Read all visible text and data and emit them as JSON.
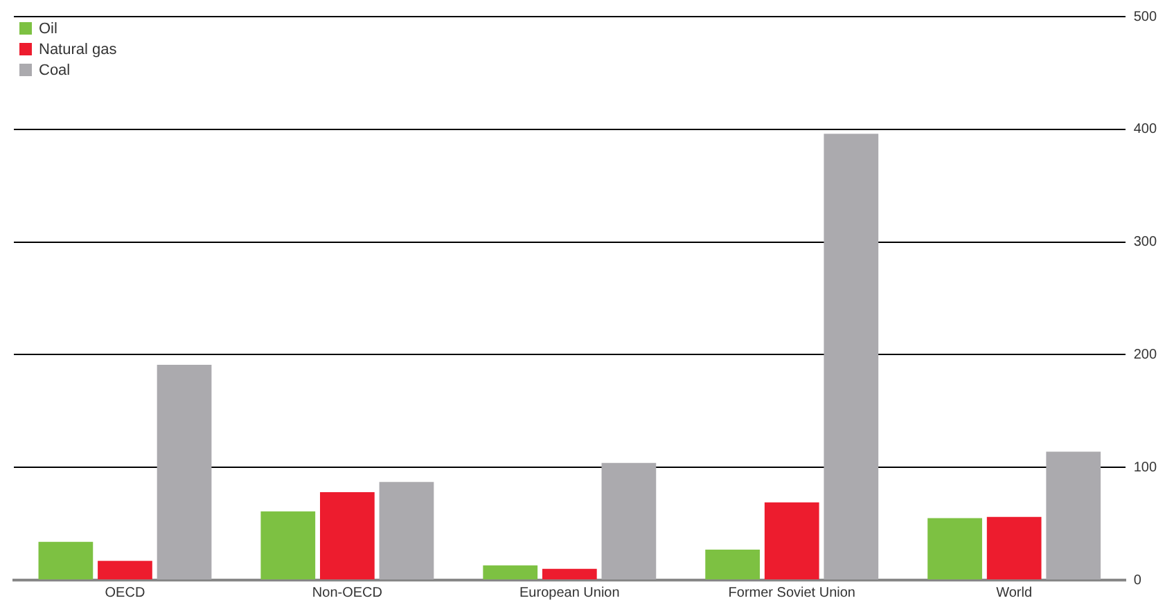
{
  "chart_data": {
    "type": "bar",
    "categories": [
      "OECD",
      "Non-OECD",
      "European Union",
      "Former Soviet Union",
      "World"
    ],
    "series": [
      {
        "name": "Oil",
        "color": "#7dc142",
        "values": [
          34,
          61,
          13,
          27,
          55
        ]
      },
      {
        "name": "Natural gas",
        "color": "#ed1c2e",
        "values": [
          17,
          78,
          10,
          69,
          56
        ]
      },
      {
        "name": "Coal",
        "color": "#abaaae",
        "values": [
          191,
          87,
          104,
          396,
          114
        ]
      }
    ],
    "ylim": [
      0,
      500
    ],
    "yticks": [
      0,
      100,
      200,
      300,
      400,
      500
    ],
    "grid": "y",
    "legend": "top left"
  }
}
